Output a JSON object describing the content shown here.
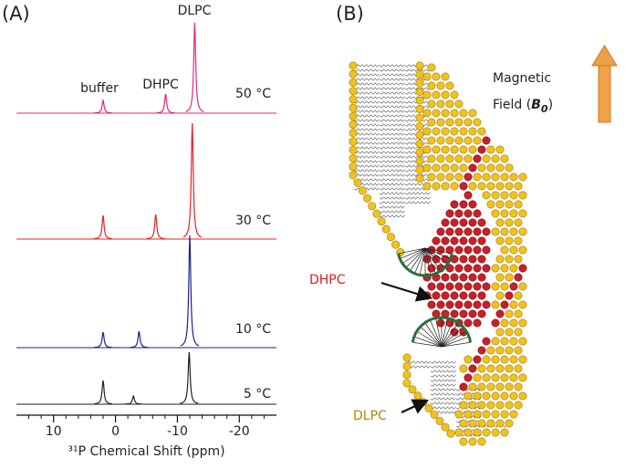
{
  "chart_data": {
    "type": "spectrum",
    "panel_label": "(A)",
    "x_label": "³¹P Chemical Shift (ppm)",
    "annotations": [
      "buffer",
      "DHPC",
      "DLPC"
    ],
    "xlim": [
      16,
      -26
    ],
    "xticks": [
      10,
      0,
      -10,
      -20
    ],
    "xminorticks": [
      14,
      12,
      8,
      6,
      4,
      2,
      -2,
      -4,
      -6,
      -8,
      -12,
      -14,
      -16,
      -18,
      -22,
      -24
    ],
    "series": [
      {
        "name": "50 °C",
        "color": "#e2277f",
        "x": [
          2,
          -8.1,
          -12.8
        ],
        "values": [
          14,
          21,
          99
        ]
      },
      {
        "name": "30 °C",
        "color": "#e8202a",
        "x": [
          2,
          -6.5,
          -12.4
        ],
        "values": [
          26,
          27,
          127
        ]
      },
      {
        "name": "10 °C",
        "color": "#1f1f8c",
        "x": [
          2,
          -3.8,
          -12
        ],
        "values": [
          17,
          18,
          123
        ]
      },
      {
        "name": "5 °C",
        "color": "#222222",
        "x": [
          2,
          -2.9,
          -11.9
        ],
        "values": [
          26,
          9,
          57
        ]
      }
    ]
  },
  "diagram": {
    "panel_label": "(B)",
    "field_label": [
      "Magnetic",
      "Field ("
    ],
    "field_symbol": "B",
    "field_subscript": "0",
    "field_close": ")",
    "dhpc_label": "DHPC",
    "dlpc_label": "DLPC"
  }
}
